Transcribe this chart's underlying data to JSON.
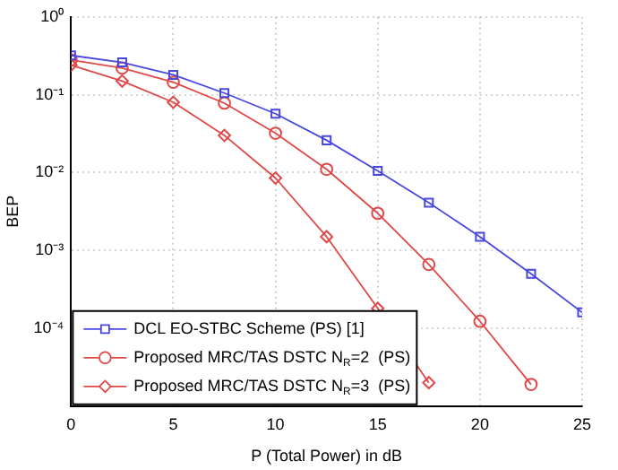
{
  "chart_data": {
    "type": "line",
    "xlabel": "P (Total Power) in dB",
    "ylabel": "BEP",
    "log": "y",
    "grid": true,
    "legend": "bottom left",
    "xlim": [
      0,
      25
    ],
    "xticks": [
      0,
      5,
      10,
      15,
      20,
      25
    ],
    "ylim": [
      1e-05,
      1
    ],
    "yticks": [
      {
        "value": 1,
        "label": "10⁰"
      },
      {
        "value": 0.1,
        "label": "10⁻¹"
      },
      {
        "value": 0.01,
        "label": "10⁻²"
      },
      {
        "value": 0.001,
        "label": "10⁻³"
      },
      {
        "value": 0.0001,
        "label": "10⁻⁴"
      },
      {
        "value": 1e-05,
        "label": null
      }
    ],
    "series": [
      {
        "name": "DCL EO-STBC Scheme (PS) [1]",
        "color": "#4848e0",
        "marker": "square",
        "x": [
          0,
          2.5,
          5,
          7.5,
          10,
          12.5,
          15,
          17.5,
          20,
          22.5,
          25
        ],
        "values": [
          0.32,
          0.26,
          0.18,
          0.105,
          0.057,
          0.026,
          0.0105,
          0.0041,
          0.0015,
          0.0005,
          0.00016
        ]
      },
      {
        "name": "Proposed MRC/TAS DSTC N$_{R}$=2  (PS)",
        "color": "#e04848",
        "marker": "circle",
        "x": [
          0,
          2.5,
          5,
          7.5,
          10,
          12.5,
          15,
          17.5,
          20,
          22.5
        ],
        "values": [
          0.28,
          0.22,
          0.145,
          0.078,
          0.032,
          0.011,
          0.003,
          0.00066,
          0.000123,
          1.9e-05
        ]
      },
      {
        "name": "Proposed MRC/TAS DSTC N$_{R}$=3  (PS)",
        "color": "#e04848",
        "marker": "diamond",
        "x": [
          0,
          2.5,
          5,
          7.5,
          10,
          12.5,
          15,
          17.5
        ],
        "values": [
          0.24,
          0.15,
          0.08,
          0.03,
          0.0085,
          0.0015,
          0.00018,
          2e-05
        ]
      }
    ]
  }
}
